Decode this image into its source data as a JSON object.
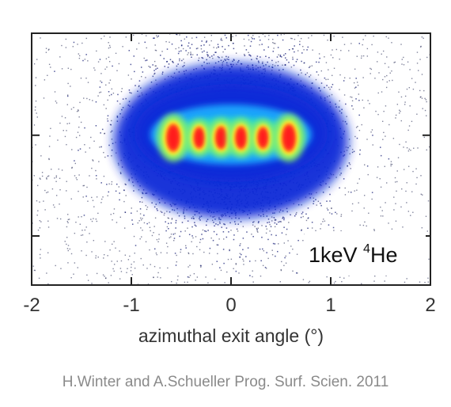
{
  "chart_data": {
    "type": "heatmap",
    "xlabel": "azimuthal exit angle (°)",
    "x_ticks": [
      "-2",
      "-1",
      "0",
      "1",
      "2"
    ],
    "xlim": [
      -2,
      2
    ],
    "y_ticks": [
      "",
      "",
      ""
    ],
    "annotation": {
      "prefix": "1keV ",
      "superscript": "4",
      "suffix": "He"
    },
    "colormap": [
      "#000066",
      "#0a2ad8",
      "#1fa9ff",
      "#21e0c8",
      "#8bf06a",
      "#ffee33",
      "#ff6a1a",
      "#ff1a1a"
    ],
    "diffraction_peaks": [
      {
        "x": -0.58,
        "intensity": 1.0
      },
      {
        "x": -0.32,
        "intensity": 0.78
      },
      {
        "x": -0.1,
        "intensity": 0.82
      },
      {
        "x": 0.1,
        "intensity": 0.82
      },
      {
        "x": 0.32,
        "intensity": 0.78
      },
      {
        "x": 0.58,
        "intensity": 1.0
      }
    ]
  },
  "caption": "H.Winter and A.Schueller Prog. Surf. Scien. 2011"
}
